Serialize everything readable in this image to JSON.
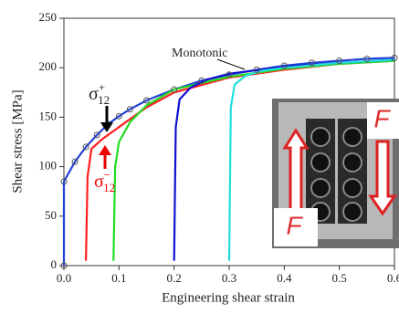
{
  "chart_data": {
    "type": "line",
    "xlabel": "Engineering shear strain",
    "ylabel": "Shear stress [MPa]",
    "xlim": [
      0,
      0.6
    ],
    "ylim": [
      0,
      250
    ],
    "xticks": [
      {
        "value": 0,
        "label": "0.0"
      },
      0.1,
      0.2,
      0.3,
      0.4,
      0.5,
      0.6
    ],
    "yticks": [
      0,
      50,
      100,
      150,
      200,
      250
    ],
    "series": [
      {
        "name": "Monotonic",
        "color": "#2040d8",
        "marker_color": "#555555",
        "x": [
          0,
          0,
          0.02,
          0.04,
          0.06,
          0.08,
          0.1,
          0.12,
          0.15,
          0.2,
          0.25,
          0.3,
          0.35,
          0.4,
          0.45,
          0.5,
          0.55,
          0.6
        ],
        "values": [
          0,
          85,
          105,
          120,
          132,
          143,
          151,
          158,
          167,
          178,
          187,
          193,
          198,
          202,
          205,
          207,
          209,
          210
        ]
      },
      {
        "color": "#ff2020",
        "x": [
          0.04,
          0.043,
          0.05,
          0.07,
          0.1,
          0.15,
          0.2,
          0.3,
          0.4,
          0.5,
          0.6
        ],
        "values": [
          5,
          90,
          118,
          128,
          140,
          160,
          175,
          190,
          198,
          204,
          207
        ]
      },
      {
        "color": "#22dd22",
        "x": [
          0.09,
          0.093,
          0.1,
          0.12,
          0.15,
          0.2,
          0.3,
          0.4,
          0.5,
          0.6
        ],
        "values": [
          5,
          100,
          125,
          145,
          162,
          178,
          191,
          199,
          204,
          207
        ]
      },
      {
        "color": "#1010d0",
        "x": [
          0.2,
          0.203,
          0.21,
          0.23,
          0.26,
          0.3,
          0.4,
          0.5,
          0.6
        ],
        "values": [
          5,
          140,
          168,
          180,
          188,
          194,
          201,
          205,
          208
        ]
      },
      {
        "color": "#22dddd",
        "x": [
          0.3,
          0.303,
          0.31,
          0.33,
          0.36,
          0.4,
          0.5,
          0.6
        ],
        "values": [
          5,
          160,
          183,
          192,
          197,
          200,
          205,
          208
        ]
      }
    ],
    "sigma_plus": {
      "symbol": "σ",
      "subscript": "12",
      "superscript": "+"
    },
    "sigma_minus": {
      "symbol": "σ",
      "subscript": "12",
      "superscript": "−"
    },
    "inset_labels": [
      "F",
      "F"
    ]
  }
}
